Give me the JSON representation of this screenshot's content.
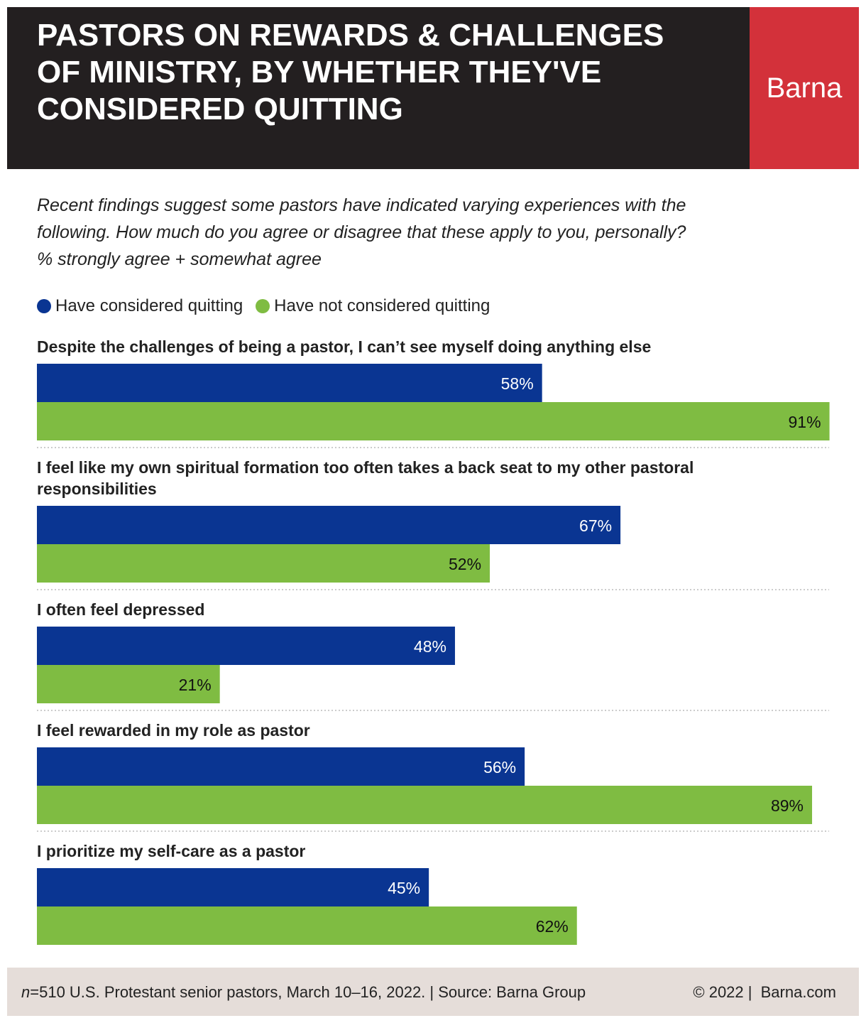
{
  "header": {
    "title": "PASTORS ON REWARDS & CHALLENGES OF MINISTRY, BY WHETHER THEY'VE CONSIDERED QUITTING",
    "brand": "Barna",
    "colors": {
      "header_bg": "#231f20",
      "brand_bg": "#d3313a"
    }
  },
  "subtitle": {
    "line1": "Recent findings suggest some pastors have indicated varying experiences with the",
    "line2": "following. How much do you agree or disagree that these apply to you, personally?",
    "line3": "% strongly agree + somewhat agree"
  },
  "legend": {
    "items": [
      {
        "label": "Have considered quitting",
        "color": "#0a3592"
      },
      {
        "label": "Have not considered quitting",
        "color": "#7fbc42"
      }
    ]
  },
  "chart_data": {
    "type": "bar",
    "orientation": "horizontal",
    "title": "PASTORS ON REWARDS & CHALLENGES OF MINISTRY, BY WHETHER THEY'VE CONSIDERED QUITTING",
    "xlim": [
      0,
      100
    ],
    "unit": "%",
    "categories": [
      [
        "Despite the challenges of being a pastor, I can’t see myself doing anything else"
      ],
      [
        "I feel like my own spiritual formation too often takes a back seat to my other pastoral",
        "responsibilities"
      ],
      [
        "I often feel depressed"
      ],
      [
        "I feel rewarded in my role as pastor"
      ],
      [
        "I prioritize my self-care as a pastor"
      ]
    ],
    "series": [
      {
        "name": "Have considered quitting",
        "color": "#0a3592",
        "label_color": "#ffffff",
        "values": [
          58,
          67,
          48,
          56,
          45
        ]
      },
      {
        "name": "Have not considered quitting",
        "color": "#7fbc42",
        "label_color": "#111111",
        "values": [
          91,
          52,
          21,
          89,
          62
        ]
      }
    ]
  },
  "footer": {
    "n_label": "n",
    "note": "=510 U.S. Protestant senior pastors, March 10–16, 2022. | Source: Barna Group",
    "copyright": "© 2022 |",
    "site": "Barna.com"
  }
}
